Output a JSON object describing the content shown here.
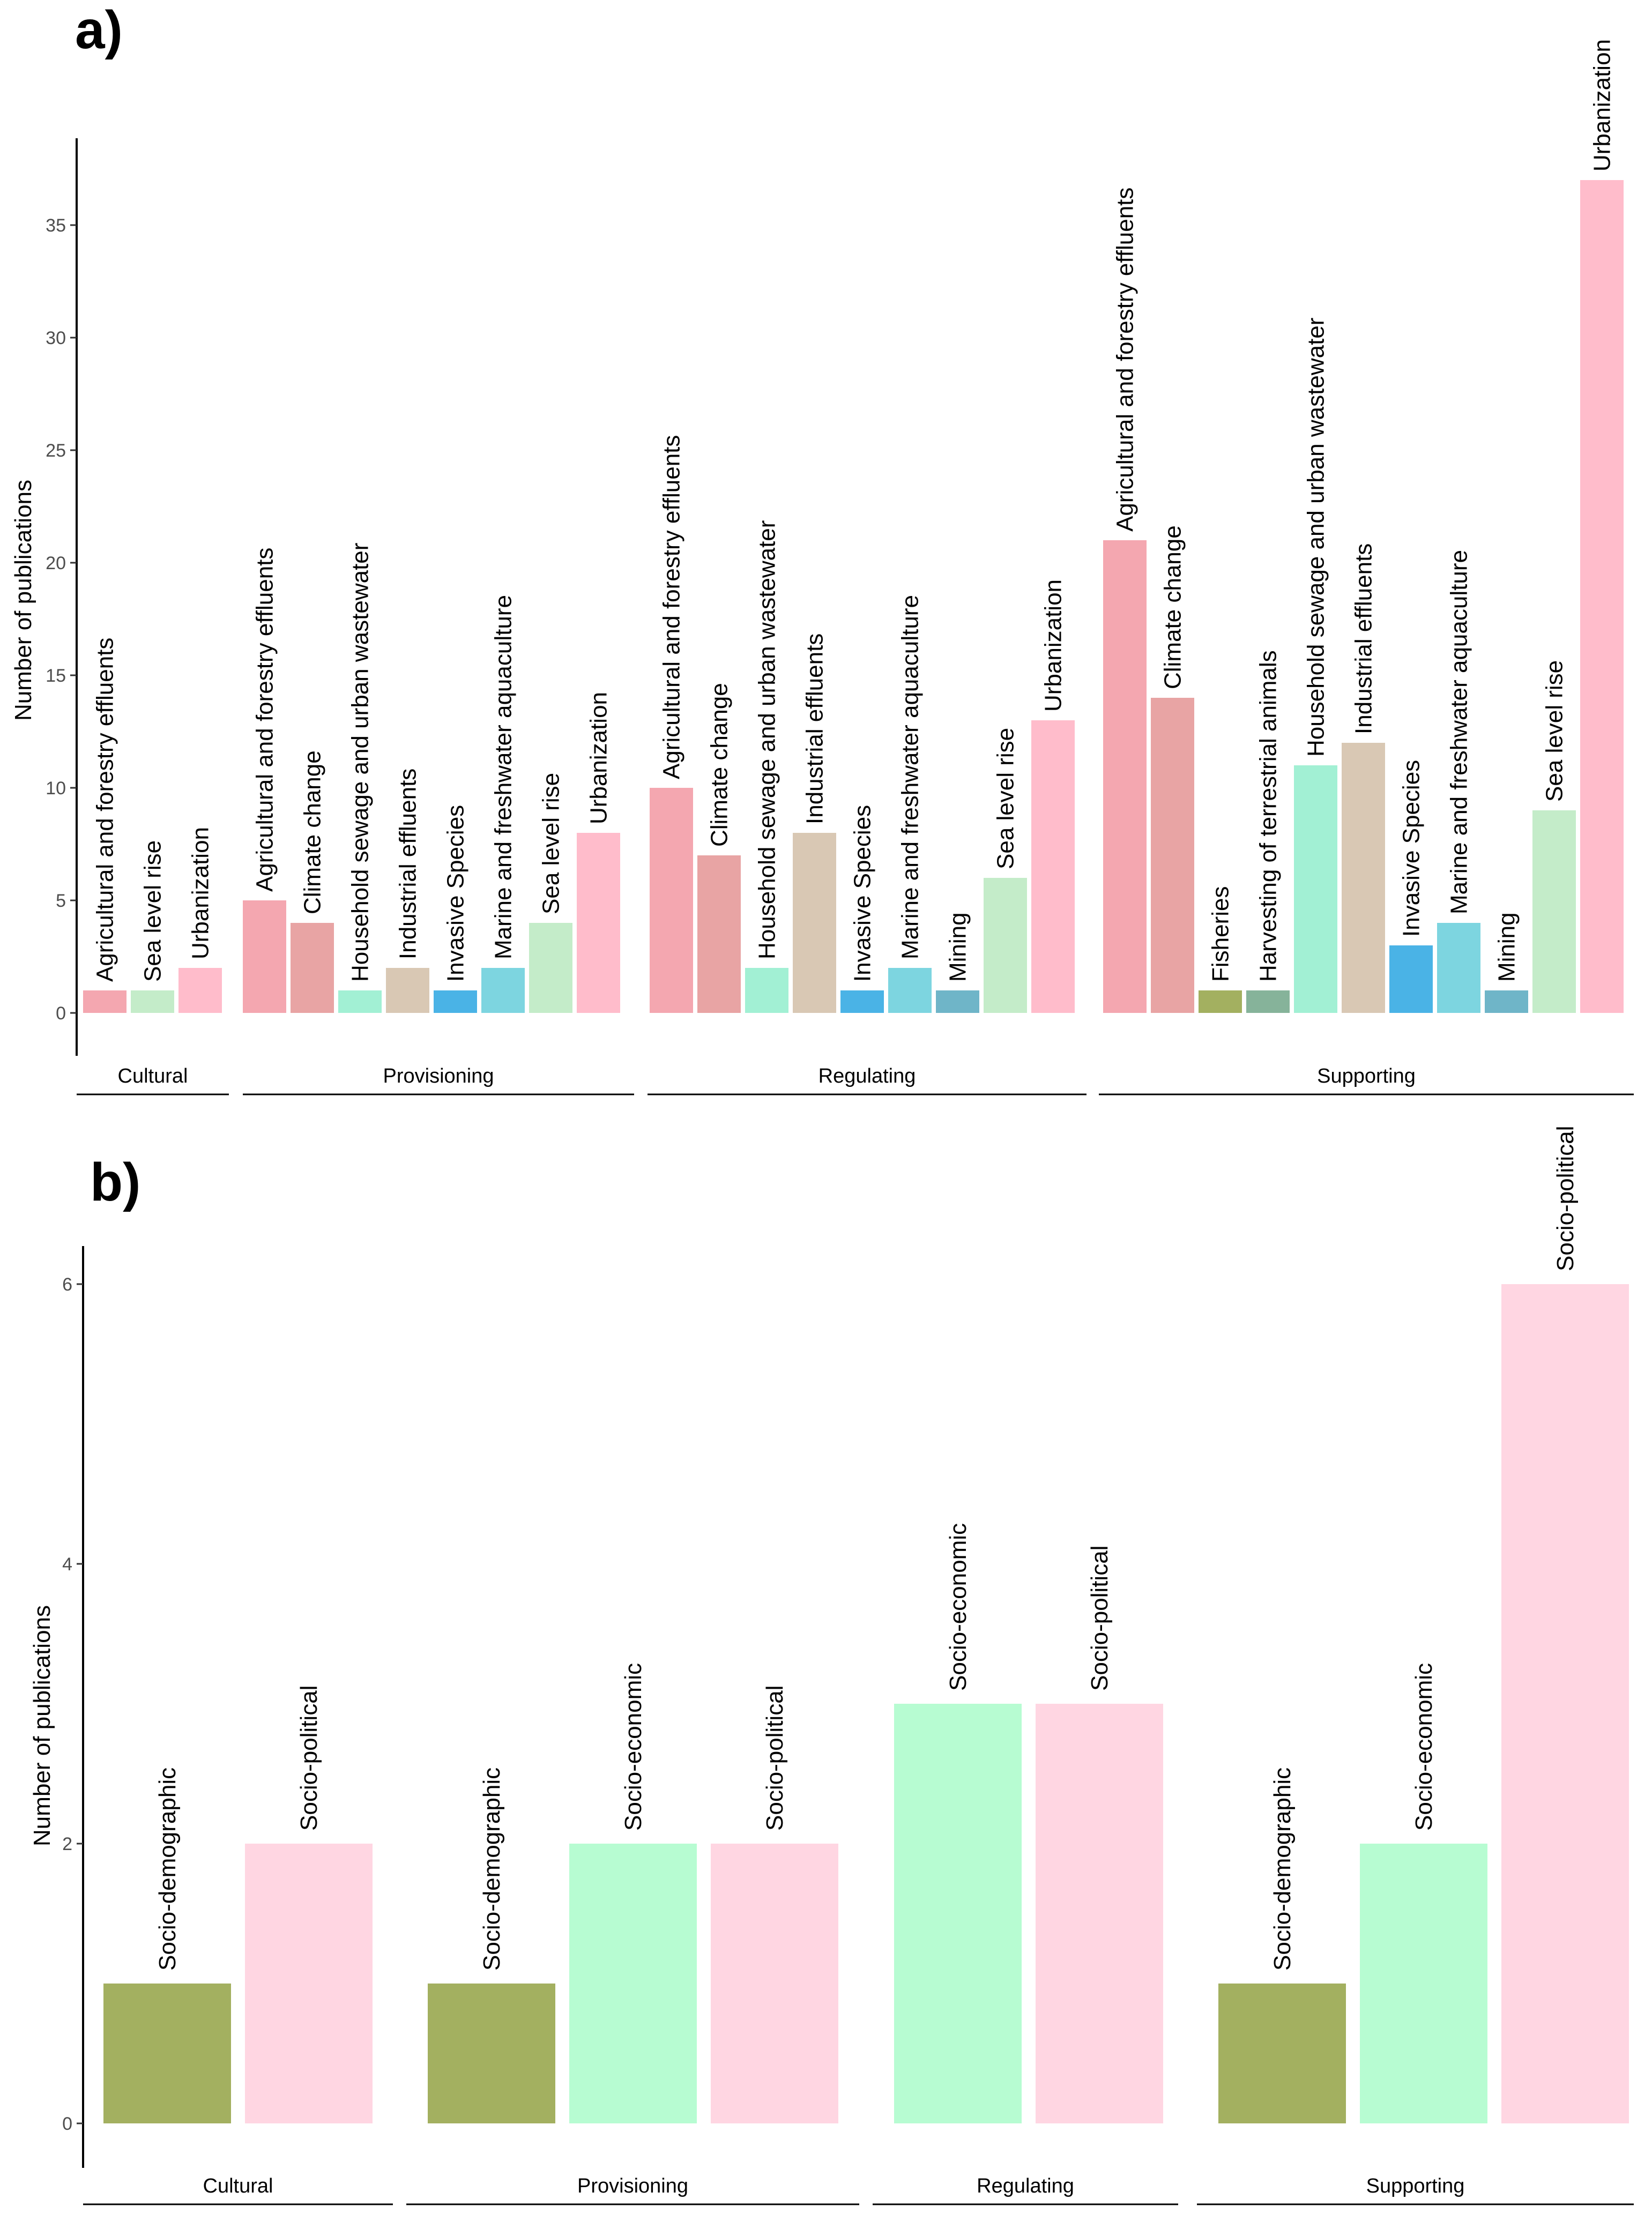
{
  "chart_data": [
    {
      "type": "bar",
      "panel": "a)",
      "ylabel": "Number of publications",
      "ylim": [
        0,
        39
      ],
      "yticks": [
        0,
        5,
        10,
        15,
        20,
        25,
        30,
        35
      ],
      "grid": false,
      "groups": [
        {
          "name": "Cultural",
          "bars": [
            {
              "label": "Agricultural and forestry effluents",
              "value": 1,
              "color": "#f4a7b0"
            },
            {
              "label": "Sea level rise",
              "value": 1,
              "color": "#c4ecc9"
            },
            {
              "label": "Urbanization",
              "value": 2,
              "color": "#ffbccb"
            }
          ]
        },
        {
          "name": "Provisioning",
          "bars": [
            {
              "label": "Agricultural and forestry effluents",
              "value": 5,
              "color": "#f4a7b0"
            },
            {
              "label": "Climate change",
              "value": 4,
              "color": "#e8a4a4"
            },
            {
              "label": "Household sewage and urban wastewater",
              "value": 1,
              "color": "#a2f0d4"
            },
            {
              "label": "Industrial effluents",
              "value": 2,
              "color": "#d9c8b4"
            },
            {
              "label": "Invasive Species",
              "value": 1,
              "color": "#4ab3e6"
            },
            {
              "label": "Marine and freshwater aquaculture",
              "value": 2,
              "color": "#7dd5e0"
            },
            {
              "label": "Sea level rise",
              "value": 4,
              "color": "#c4ecc9"
            },
            {
              "label": "Urbanization",
              "value": 8,
              "color": "#ffbccb"
            }
          ]
        },
        {
          "name": "Regulating",
          "bars": [
            {
              "label": "Agricultural and forestry effluents",
              "value": 10,
              "color": "#f4a7b0"
            },
            {
              "label": "Climate change",
              "value": 7,
              "color": "#e8a4a4"
            },
            {
              "label": "Household sewage and urban wastewater",
              "value": 2,
              "color": "#a2f0d4"
            },
            {
              "label": "Industrial effluents",
              "value": 8,
              "color": "#d9c8b4"
            },
            {
              "label": "Invasive Species",
              "value": 1,
              "color": "#4ab3e6"
            },
            {
              "label": "Marine and freshwater aquaculture",
              "value": 2,
              "color": "#7dd5e0"
            },
            {
              "label": "Mining",
              "value": 1,
              "color": "#6fb5c8"
            },
            {
              "label": "Sea level rise",
              "value": 6,
              "color": "#c4ecc9"
            },
            {
              "label": "Urbanization",
              "value": 13,
              "color": "#ffbccb"
            }
          ]
        },
        {
          "name": "Supporting",
          "bars": [
            {
              "label": "Agricultural and forestry effluents",
              "value": 21,
              "color": "#f4a7b0"
            },
            {
              "label": "Climate change",
              "value": 14,
              "color": "#e8a4a4"
            },
            {
              "label": "Fisheries",
              "value": 1,
              "color": "#a3b060"
            },
            {
              "label": "Harvesting of terrestrial animals",
              "value": 1,
              "color": "#86b39a"
            },
            {
              "label": "Household sewage and urban wastewater",
              "value": 11,
              "color": "#a2f0d4"
            },
            {
              "label": "Industrial effluents",
              "value": 12,
              "color": "#d9c8b4"
            },
            {
              "label": "Invasive Species",
              "value": 3,
              "color": "#4ab3e6"
            },
            {
              "label": "Marine and freshwater aquaculture",
              "value": 4,
              "color": "#7dd5e0"
            },
            {
              "label": "Mining",
              "value": 1,
              "color": "#6fb5c8"
            },
            {
              "label": "Sea level rise",
              "value": 9,
              "color": "#c4ecc9"
            },
            {
              "label": "Urbanization",
              "value": 37,
              "color": "#ffbccb"
            }
          ]
        }
      ]
    },
    {
      "type": "bar",
      "panel": "b)",
      "ylabel": "Number of publications",
      "ylim": [
        0,
        6.3
      ],
      "yticks": [
        0,
        2,
        4,
        6
      ],
      "grid": false,
      "groups": [
        {
          "name": "Cultural",
          "bars": [
            {
              "label": "Socio-demographic",
              "value": 1,
              "color": "#a3b060"
            },
            {
              "label": "Socio-political",
              "value": 2,
              "color": "#ffd6e2"
            }
          ]
        },
        {
          "name": "Provisioning",
          "bars": [
            {
              "label": "Socio-demographic",
              "value": 1,
              "color": "#a3b060"
            },
            {
              "label": "Socio-economic",
              "value": 2,
              "color": "#b7fcd2"
            },
            {
              "label": "Socio-political",
              "value": 2,
              "color": "#ffd6e2"
            }
          ]
        },
        {
          "name": "Regulating",
          "bars": [
            {
              "label": "Socio-economic",
              "value": 3,
              "color": "#b7fcd2"
            },
            {
              "label": "Socio-political",
              "value": 3,
              "color": "#ffd6e2"
            }
          ]
        },
        {
          "name": "Supporting",
          "bars": [
            {
              "label": "Socio-demographic",
              "value": 1,
              "color": "#a3b060"
            },
            {
              "label": "Socio-economic",
              "value": 2,
              "color": "#b7fcd2"
            },
            {
              "label": "Socio-political",
              "value": 6,
              "color": "#ffd6e2"
            }
          ]
        }
      ]
    }
  ]
}
